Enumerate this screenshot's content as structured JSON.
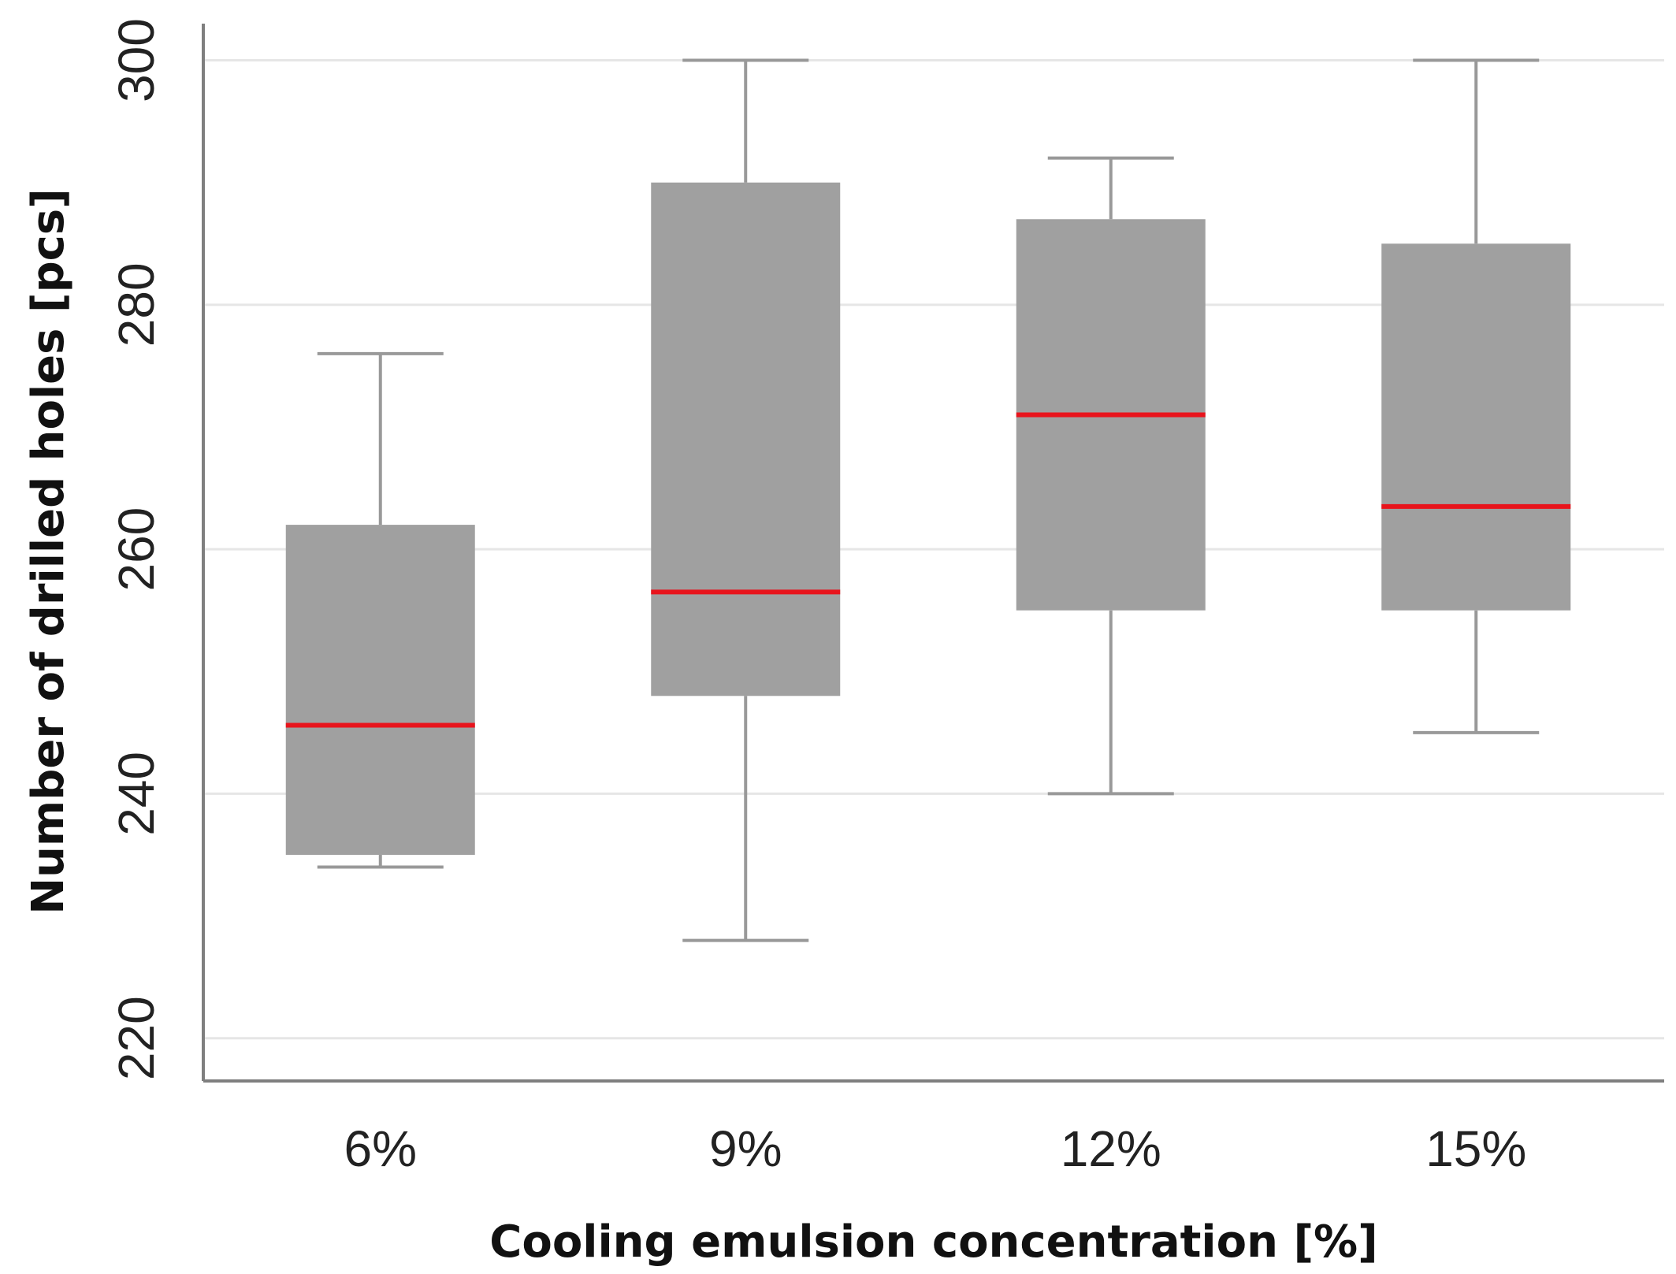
{
  "chart_data": {
    "type": "box",
    "title": "",
    "xlabel": "Cooling emulsion concentration [%]",
    "ylabel": "Number of drilled holes [pcs]",
    "ylim": [
      216.5,
      303
    ],
    "yticks": [
      220,
      240,
      260,
      280,
      300
    ],
    "ytick_labels": [
      "220",
      "240",
      "260",
      "280",
      "300"
    ],
    "grid": true,
    "categories": [
      "6%",
      "9%",
      "12%",
      "15%"
    ],
    "boxes": [
      {
        "category": "6%",
        "min": 234,
        "q1": 235,
        "median": 245.6,
        "q3": 262,
        "max": 276
      },
      {
        "category": "9%",
        "min": 228,
        "q1": 248,
        "median": 256.5,
        "q3": 290,
        "max": 300
      },
      {
        "category": "12%",
        "min": 240,
        "q1": 255,
        "median": 271,
        "q3": 287,
        "max": 292
      },
      {
        "category": "15%",
        "min": 245,
        "q1": 255,
        "median": 263.5,
        "q3": 285,
        "max": 300
      }
    ],
    "colors": {
      "box_fill": "#a0a0a0",
      "whisker": "#999999",
      "median": "#e8141c",
      "grid": "#e6e6e6",
      "axis": "#7f7f7f"
    }
  }
}
